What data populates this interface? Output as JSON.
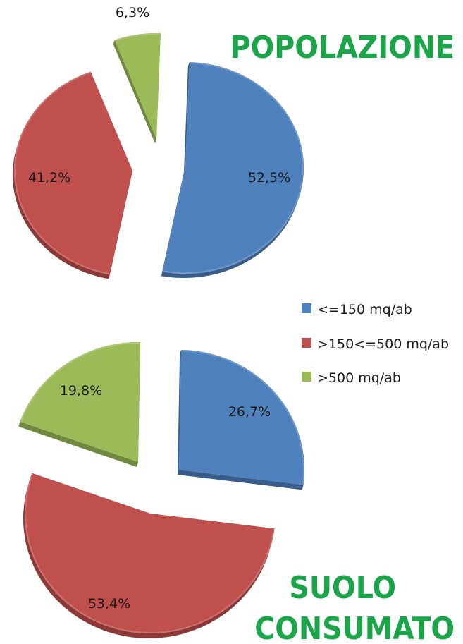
{
  "chart_data": [
    {
      "type": "pie",
      "title": "POPOLAZIONE",
      "categories": [
        "<=150 mq/ab",
        ">150<=500 mq/ab",
        ">500 mq/ab"
      ],
      "values": [
        52.5,
        41.2,
        6.3
      ],
      "labels": [
        "52,5%",
        "41,2%",
        "6,3%"
      ],
      "exploded": true,
      "style": "3d"
    },
    {
      "type": "pie",
      "title": [
        "SUOLO",
        "CONSUMATO"
      ],
      "categories": [
        "<=150 mq/ab",
        ">150<=500 mq/ab",
        ">500 mq/ab"
      ],
      "values": [
        26.7,
        53.4,
        19.8
      ],
      "labels": [
        "26,7%",
        "53,4%",
        "19,8%"
      ],
      "exploded": true,
      "style": "3d"
    }
  ],
  "legend": {
    "placement": "right",
    "items": [
      {
        "label": "<=150 mq/ab",
        "color": "#4f81bd"
      },
      {
        "label": ">150<=500 mq/ab",
        "color": "#c0504d"
      },
      {
        "label": ">500 mq/ab",
        "color": "#9bbb59"
      }
    ]
  },
  "colors": {
    "series": [
      "#4f81bd",
      "#c0504d",
      "#9bbb59"
    ],
    "series_dark": [
      "#385d8a",
      "#8c3836",
      "#71893f"
    ],
    "title": "#1aa549"
  }
}
